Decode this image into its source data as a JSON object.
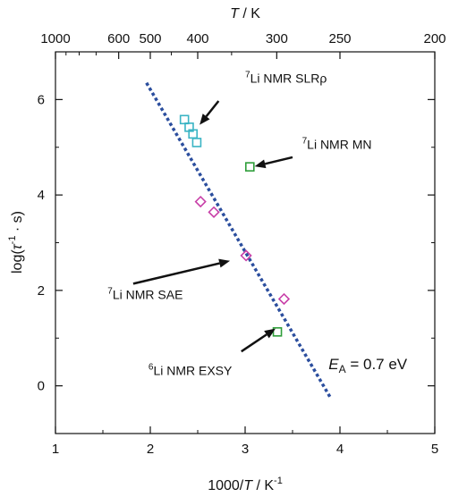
{
  "chart_data": {
    "type": "scatter",
    "title": "",
    "xlabel": {
      "main": "1000/",
      "var": "T",
      "rest": " / K",
      "sup": "-1"
    },
    "ylabel": {
      "main": "log(",
      "var": "τ",
      "sup": "-1",
      "rest": " · s)"
    },
    "top_xlabel": {
      "var": "T",
      "rest": " / K"
    },
    "xlim": [
      1,
      5
    ],
    "ylim": [
      -1,
      7
    ],
    "xticks": [
      1,
      2,
      3,
      4,
      5
    ],
    "xtick_labels": [
      "1",
      "2",
      "3",
      "4",
      "5"
    ],
    "yticks": [
      0,
      2,
      4,
      6
    ],
    "ytick_labels": [
      "0",
      "2",
      "4",
      "6"
    ],
    "top_ticks": [
      1000,
      600,
      500,
      400,
      300,
      250,
      200
    ],
    "top_tick_labels": [
      "1000",
      "600",
      "500",
      "400",
      "300",
      "250",
      "200"
    ],
    "grid": false,
    "colors": {
      "slr": "#3ab4c4",
      "sae": "#c840a8",
      "green": "#2e9e3a",
      "fit": "#2b4e9e",
      "arrow": "#111111"
    },
    "series": [
      {
        "marker": "square",
        "color": "slr",
        "points": [
          [
            2.36,
            5.58
          ],
          [
            2.41,
            5.42
          ],
          [
            2.45,
            5.28
          ],
          [
            2.49,
            5.1
          ]
        ]
      },
      {
        "marker": "diamond",
        "color": "sae",
        "points": [
          [
            2.53,
            3.86
          ],
          [
            2.67,
            3.64
          ],
          [
            3.01,
            2.73
          ],
          [
            3.41,
            1.82
          ]
        ]
      },
      {
        "marker": "square",
        "color": "green",
        "points": [
          [
            3.05,
            4.59
          ],
          [
            3.34,
            1.13
          ]
        ]
      }
    ],
    "fit_line": {
      "x": [
        1.96,
        3.9
      ],
      "y": [
        6.35,
        -0.25
      ]
    },
    "annotations": [
      {
        "sup": "7",
        "text": "Li NMR SLRρ",
        "x": 3.0,
        "y": 6.35,
        "arrow": {
          "from": [
            2.72,
            5.97
          ],
          "to": [
            2.52,
            5.47
          ]
        }
      },
      {
        "sup": "7",
        "text": "Li NMR MN",
        "x": 3.6,
        "y": 4.97,
        "arrow": {
          "from": [
            3.5,
            4.79
          ],
          "to": [
            3.1,
            4.6
          ]
        }
      },
      {
        "sup": "7",
        "text": "Li NMR SAE",
        "x": 1.55,
        "y": 1.82,
        "arrow": {
          "from": [
            1.82,
            2.14
          ],
          "to": [
            2.84,
            2.62
          ]
        }
      },
      {
        "sup": "6",
        "text": "Li NMR EXSY",
        "x": 1.98,
        "y": 0.23,
        "arrow": {
          "from": [
            2.96,
            0.72
          ],
          "to": [
            3.32,
            1.2
          ]
        }
      }
    ],
    "ea_label": {
      "main": "E",
      "sub": "A",
      "rest": " = 0.7 eV",
      "x": 3.88,
      "y": 0.35
    }
  }
}
